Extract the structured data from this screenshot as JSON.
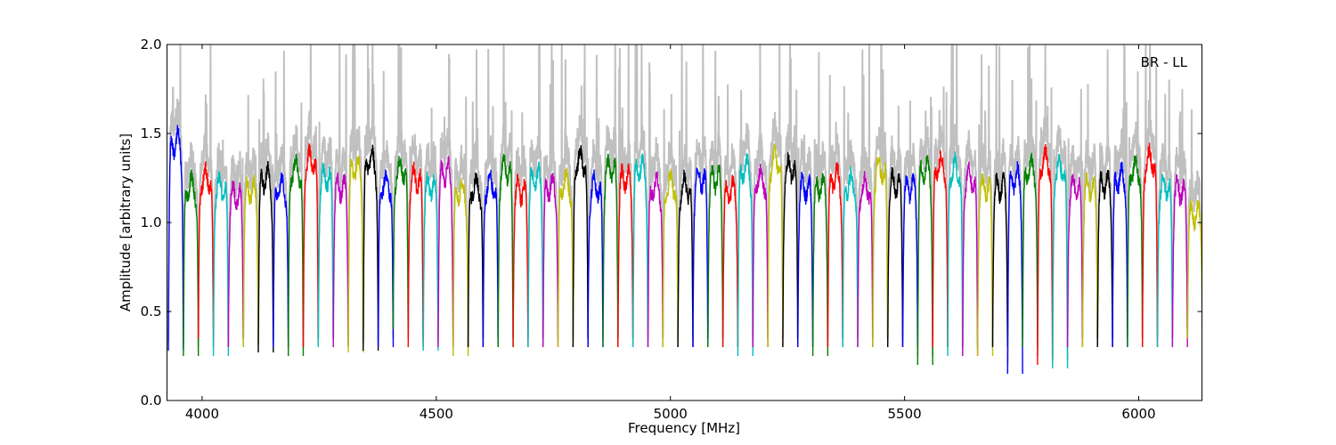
{
  "chart_data": {
    "type": "line",
    "title": "",
    "xlabel": "Frequency [MHz]",
    "ylabel": "Amplitude [arbitrary units]",
    "annotation": "BR - LL",
    "xlim": [
      3925,
      6135
    ],
    "ylim": [
      0.0,
      2.0
    ],
    "xticks": [
      4000,
      4500,
      5000,
      5500,
      6000
    ],
    "yticks": [
      0.0,
      0.5,
      1.0,
      1.5,
      2.0
    ],
    "xtick_labels": [
      "4000",
      "4500",
      "5000",
      "5500",
      "6000"
    ],
    "ytick_labels": [
      "0.0",
      "0.5",
      "1.0",
      "1.5",
      "2.0"
    ],
    "grid": false,
    "legend": "none",
    "color_cycle": [
      "#0000ff",
      "#008000",
      "#ff0000",
      "#00bfbf",
      "#bf00bf",
      "#bfbf00",
      "#000000"
    ],
    "background_color": "#c0c0c0",
    "channel_width_mhz": 32,
    "channel_start_mhz": 3928,
    "channel_centers_mhz": [
      3944,
      3976,
      4008,
      4040,
      4072,
      4104,
      4136,
      4168,
      4200,
      4232,
      4264,
      4296,
      4328,
      4360,
      4392,
      4424,
      4456,
      4488,
      4520,
      4552,
      4584,
      4616,
      4648,
      4680,
      4712,
      4744,
      4776,
      4808,
      4840,
      4872,
      4904,
      4936,
      4968,
      5000,
      5032,
      5064,
      5096,
      5128,
      5160,
      5192,
      5224,
      5256,
      5288,
      5320,
      5352,
      5384,
      5416,
      5448,
      5480,
      5512,
      5544,
      5576,
      5608,
      5640,
      5672,
      5704,
      5736,
      5768,
      5800,
      5832,
      5864,
      5896,
      5928,
      5960,
      5992,
      6024,
      6056,
      6088,
      6120
    ],
    "channel_levels": [
      1.45,
      1.2,
      1.25,
      1.2,
      1.15,
      1.18,
      1.25,
      1.2,
      1.3,
      1.35,
      1.25,
      1.2,
      1.3,
      1.35,
      1.22,
      1.3,
      1.25,
      1.2,
      1.28,
      1.18,
      1.2,
      1.22,
      1.3,
      1.18,
      1.25,
      1.2,
      1.22,
      1.35,
      1.2,
      1.3,
      1.25,
      1.3,
      1.2,
      1.22,
      1.2,
      1.25,
      1.25,
      1.18,
      1.3,
      1.25,
      1.35,
      1.3,
      1.2,
      1.2,
      1.25,
      1.22,
      1.2,
      1.3,
      1.22,
      1.2,
      1.3,
      1.32,
      1.3,
      1.25,
      1.2,
      1.2,
      1.25,
      1.3,
      1.35,
      1.3,
      1.2,
      1.2,
      1.22,
      1.25,
      1.3,
      1.35,
      1.2,
      1.18,
      1.05
    ],
    "channel_dip_minima": [
      0.28,
      0.25,
      0.35,
      0.25,
      0.3,
      0.3,
      0.27,
      0.3,
      0.25,
      0.3,
      0.3,
      0.3,
      0.27,
      0.28,
      0.3,
      0.4,
      0.3,
      0.28,
      0.3,
      0.25,
      0.3,
      0.3,
      0.3,
      0.3,
      0.3,
      0.3,
      0.3,
      0.3,
      0.3,
      0.3,
      0.3,
      0.3,
      0.3,
      0.3,
      0.3,
      0.3,
      0.3,
      0.3,
      0.25,
      0.3,
      0.3,
      0.3,
      0.3,
      0.25,
      0.3,
      0.3,
      0.3,
      0.3,
      0.3,
      0.3,
      0.2,
      0.3,
      0.25,
      0.25,
      0.25,
      0.3,
      0.15,
      0.3,
      0.2,
      0.18,
      0.3,
      0.3,
      0.3,
      0.3,
      0.3,
      0.3,
      0.3,
      0.3,
      0.35
    ]
  }
}
